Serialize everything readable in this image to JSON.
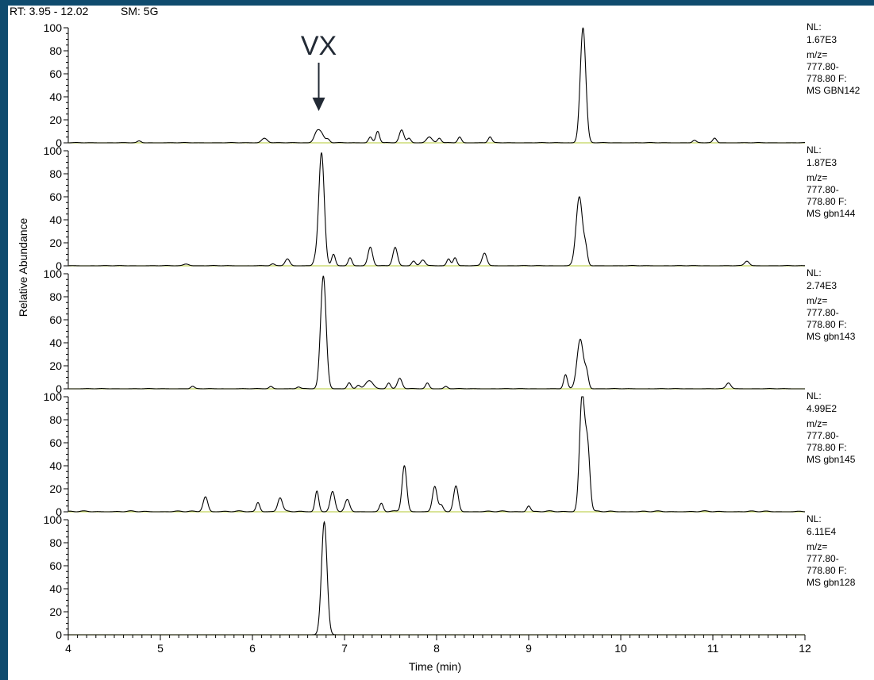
{
  "header": {
    "rt_range": "RT: 3.95 - 12.02",
    "smoothing": "SM: 5G"
  },
  "annotation": {
    "label": "VX",
    "x": 6.72,
    "target_panel": 0
  },
  "colors": {
    "trace": "#000000",
    "baseline": "#c2d45a",
    "annotation": "#222a35",
    "frame_border": "#0f4b6e"
  },
  "chart_data": {
    "type": "line",
    "xlabel": "Time (min)",
    "ylabel": "Relative Abundance",
    "xlim": [
      4,
      12
    ],
    "ylim": [
      0,
      100
    ],
    "x_ticks": [
      4,
      5,
      6,
      7,
      8,
      9,
      10,
      11,
      12
    ],
    "y_ticks": [
      0,
      20,
      40,
      60,
      80,
      100
    ],
    "panels": [
      {
        "nl": "NL:",
        "nl_value": "1.67E3",
        "mz": "m/z=",
        "mz_range": "777.80-",
        "mz_f": "778.80 F:",
        "scan": "MS GBN142",
        "noise": 0.3,
        "peaks": [
          {
            "x": 4.77,
            "h": 1.5,
            "w": 0.02
          },
          {
            "x": 6.13,
            "h": 4,
            "w": 0.03
          },
          {
            "x": 6.7,
            "h": 9,
            "w": 0.03
          },
          {
            "x": 6.75,
            "h": 7,
            "w": 0.03
          },
          {
            "x": 6.82,
            "h": 3,
            "w": 0.02
          },
          {
            "x": 7.28,
            "h": 5,
            "w": 0.02
          },
          {
            "x": 7.36,
            "h": 10,
            "w": 0.02
          },
          {
            "x": 7.62,
            "h": 11,
            "w": 0.025
          },
          {
            "x": 7.7,
            "h": 4,
            "w": 0.02
          },
          {
            "x": 7.92,
            "h": 5,
            "w": 0.03
          },
          {
            "x": 8.03,
            "h": 4,
            "w": 0.02
          },
          {
            "x": 8.25,
            "h": 5,
            "w": 0.02
          },
          {
            "x": 8.58,
            "h": 5,
            "w": 0.02
          },
          {
            "x": 9.59,
            "h": 100,
            "w": 0.03
          },
          {
            "x": 10.8,
            "h": 2,
            "w": 0.02
          },
          {
            "x": 11.02,
            "h": 4,
            "w": 0.02
          }
        ]
      },
      {
        "nl": "NL:",
        "nl_value": "1.87E3",
        "mz": "m/z=",
        "mz_range": "777.80-",
        "mz_f": "778.80 F:",
        "scan": "MS gbn144",
        "noise": 0.3,
        "peaks": [
          {
            "x": 5.28,
            "h": 1.5,
            "w": 0.03
          },
          {
            "x": 6.22,
            "h": 1.5,
            "w": 0.02
          },
          {
            "x": 6.38,
            "h": 6,
            "w": 0.025
          },
          {
            "x": 6.68,
            "h": 4,
            "w": 0.02
          },
          {
            "x": 6.75,
            "h": 98,
            "w": 0.03
          },
          {
            "x": 6.88,
            "h": 10,
            "w": 0.02
          },
          {
            "x": 7.06,
            "h": 7,
            "w": 0.02
          },
          {
            "x": 7.28,
            "h": 16,
            "w": 0.025
          },
          {
            "x": 7.55,
            "h": 16,
            "w": 0.025
          },
          {
            "x": 7.75,
            "h": 4,
            "w": 0.02
          },
          {
            "x": 7.85,
            "h": 5,
            "w": 0.025
          },
          {
            "x": 8.13,
            "h": 6,
            "w": 0.02
          },
          {
            "x": 8.2,
            "h": 7,
            "w": 0.02
          },
          {
            "x": 8.52,
            "h": 11,
            "w": 0.025
          },
          {
            "x": 9.55,
            "h": 60,
            "w": 0.035
          },
          {
            "x": 9.62,
            "h": 12,
            "w": 0.02
          },
          {
            "x": 11.37,
            "h": 4,
            "w": 0.025
          }
        ]
      },
      {
        "nl": "NL:",
        "nl_value": "2.74E3",
        "mz": "m/z=",
        "mz_range": "777.80-",
        "mz_f": "778.80 F:",
        "scan": "MS gbn143",
        "noise": 0.3,
        "peaks": [
          {
            "x": 5.35,
            "h": 2,
            "w": 0.02
          },
          {
            "x": 6.2,
            "h": 2,
            "w": 0.02
          },
          {
            "x": 6.5,
            "h": 1.5,
            "w": 0.02
          },
          {
            "x": 6.77,
            "h": 98,
            "w": 0.03
          },
          {
            "x": 7.05,
            "h": 5,
            "w": 0.02
          },
          {
            "x": 7.15,
            "h": 3,
            "w": 0.02
          },
          {
            "x": 7.27,
            "h": 7,
            "w": 0.04
          },
          {
            "x": 7.48,
            "h": 5,
            "w": 0.02
          },
          {
            "x": 7.6,
            "h": 9,
            "w": 0.025
          },
          {
            "x": 7.9,
            "h": 5,
            "w": 0.02
          },
          {
            "x": 8.1,
            "h": 2,
            "w": 0.02
          },
          {
            "x": 9.4,
            "h": 12,
            "w": 0.02
          },
          {
            "x": 9.56,
            "h": 43,
            "w": 0.035
          },
          {
            "x": 9.63,
            "h": 12,
            "w": 0.02
          },
          {
            "x": 11.17,
            "h": 5,
            "w": 0.025
          }
        ]
      },
      {
        "nl": "NL:",
        "nl_value": "4.99E2",
        "mz": "m/z=",
        "mz_range": "777.80-",
        "mz_f": "778.80 F:",
        "scan": "MS gbn145",
        "noise": 0.9,
        "peaks": [
          {
            "x": 5.49,
            "h": 13,
            "w": 0.025
          },
          {
            "x": 6.06,
            "h": 8,
            "w": 0.02
          },
          {
            "x": 6.3,
            "h": 12,
            "w": 0.025
          },
          {
            "x": 6.7,
            "h": 18,
            "w": 0.02
          },
          {
            "x": 6.87,
            "h": 17,
            "w": 0.025
          },
          {
            "x": 7.03,
            "h": 10,
            "w": 0.025
          },
          {
            "x": 7.4,
            "h": 7,
            "w": 0.02
          },
          {
            "x": 7.65,
            "h": 40,
            "w": 0.025
          },
          {
            "x": 7.98,
            "h": 22,
            "w": 0.025
          },
          {
            "x": 8.05,
            "h": 5,
            "w": 0.02
          },
          {
            "x": 8.21,
            "h": 22,
            "w": 0.025
          },
          {
            "x": 9.0,
            "h": 5,
            "w": 0.02
          },
          {
            "x": 9.58,
            "h": 100,
            "w": 0.028
          },
          {
            "x": 9.64,
            "h": 55,
            "w": 0.025
          }
        ]
      },
      {
        "nl": "NL:",
        "nl_value": "6.11E4",
        "mz": "m/z=",
        "mz_range": "777.80-",
        "mz_f": "778.80 F:",
        "scan": "MS gbn128",
        "noise": 0,
        "peaks": [
          {
            "x": 6.78,
            "h": 98,
            "w": 0.03
          }
        ]
      }
    ]
  }
}
